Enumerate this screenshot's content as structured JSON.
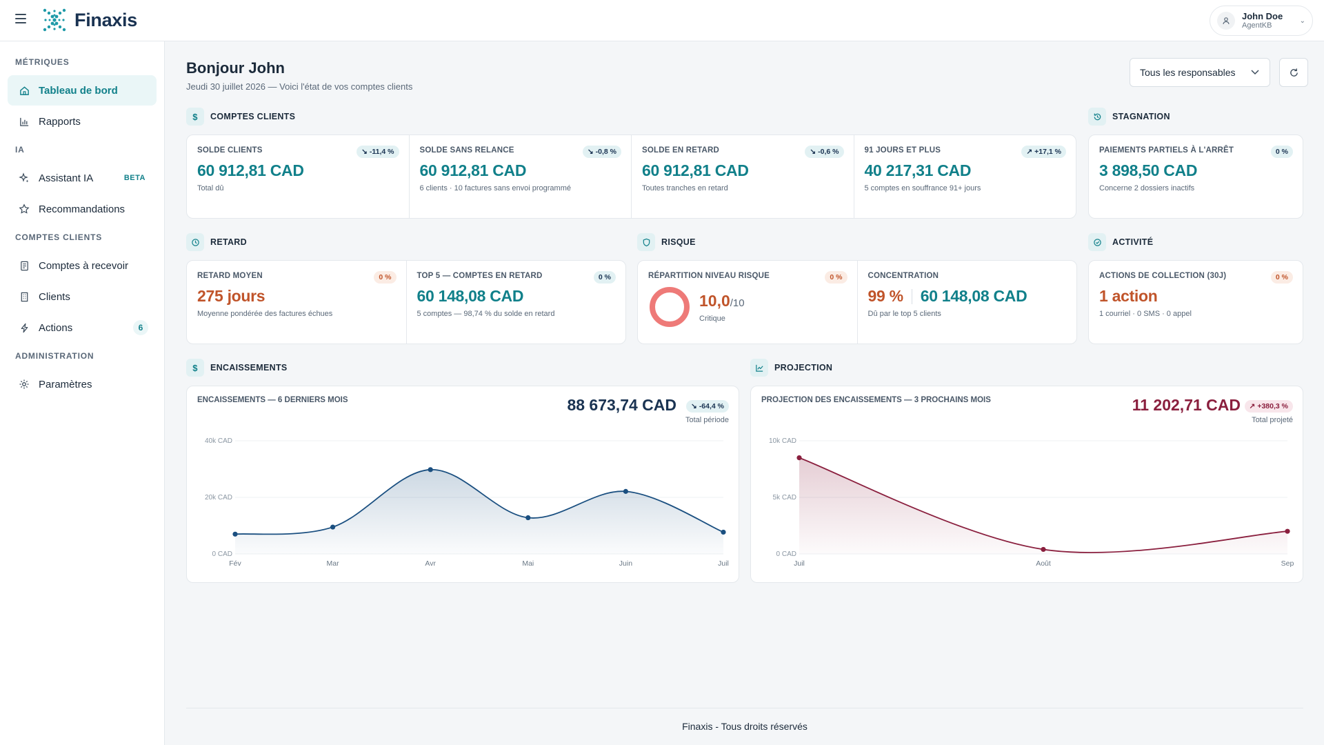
{
  "app": {
    "name": "Finaxis"
  },
  "user": {
    "name": "John Doe",
    "role": "AgentKB"
  },
  "sidebar": {
    "sections": [
      "MÉTRIQUES",
      "IA",
      "COMPTES CLIENTS",
      "ADMINISTRATION"
    ],
    "items": [
      {
        "label": "Tableau de bord",
        "icon": "home-icon",
        "active": true
      },
      {
        "label": "Rapports",
        "icon": "bar-chart-icon"
      },
      {
        "label": "Assistant IA",
        "icon": "sparkle-icon",
        "badge": "BETA"
      },
      {
        "label": "Recommandations",
        "icon": "star-icon"
      },
      {
        "label": "Comptes à recevoir",
        "icon": "document-icon"
      },
      {
        "label": "Clients",
        "icon": "building-icon"
      },
      {
        "label": "Actions",
        "icon": "lightning-icon",
        "count": "6"
      },
      {
        "label": "Paramètres",
        "icon": "gear-icon"
      }
    ]
  },
  "header": {
    "greeting": "Bonjour John",
    "date": "Jeudi 30 juillet 2026 — Voici l'état de vos comptes clients",
    "responsable_select": "Tous les responsables"
  },
  "sections": {
    "comptes": "COMPTES CLIENTS",
    "stagnation": "STAGNATION",
    "retard": "RETARD",
    "risque": "RISQUE",
    "activite": "ACTIVITÉ",
    "encaissements": "ENCAISSEMENTS",
    "projection": "PROJECTION"
  },
  "kpis": {
    "solde_clients": {
      "label": "SOLDE CLIENTS",
      "badge": "-11,4 %",
      "value": "60 912,81 CAD",
      "sub": "Total dû"
    },
    "solde_sans_relance": {
      "label": "SOLDE SANS RELANCE",
      "badge": "-0,8 %",
      "value": "60 912,81 CAD",
      "sub": "6 clients · 10 factures sans envoi programmé"
    },
    "solde_retard": {
      "label": "SOLDE EN RETARD",
      "badge": "-0,6 %",
      "value": "60 912,81 CAD",
      "sub": "Toutes tranches en retard"
    },
    "jours91": {
      "label": "91 JOURS ET PLUS",
      "badge": "+17,1 %",
      "value": "40 217,31 CAD",
      "sub": "5 comptes en souffrance 91+ jours"
    },
    "paiements_partiels": {
      "label": "PAIEMENTS PARTIELS À L'ARRÊT",
      "badge": "0 %",
      "value": "3 898,50 CAD",
      "sub": "Concerne 2 dossiers inactifs"
    },
    "retard_moyen": {
      "label": "RETARD MOYEN",
      "badge": "0 %",
      "value": "275 jours",
      "sub": "Moyenne pondérée des factures échues"
    },
    "top5": {
      "label": "TOP 5 — COMPTES EN RETARD",
      "badge": "0 %",
      "value": "60 148,08 CAD",
      "sub": "5 comptes — 98,74 % du solde en retard"
    },
    "risque": {
      "label": "RÉPARTITION NIVEAU RISQUE",
      "badge": "0 %",
      "score": "10,0",
      "scale": "/10",
      "level": "Critique"
    },
    "concentration": {
      "label": "CONCENTRATION",
      "pct": "99 %",
      "value": "60 148,08 CAD",
      "sub": "Dû par le top 5 clients"
    },
    "actions": {
      "label": "ACTIONS DE COLLECTION (30J)",
      "badge": "0 %",
      "value": "1 action",
      "sub": "1 courriel · 0 SMS · 0 appel"
    }
  },
  "encaissements": {
    "title": "ENCAISSEMENTS — 6 DERNIERS MOIS",
    "total": "88 673,74 CAD",
    "badge": "-64,4 %",
    "total_label": "Total période"
  },
  "projection": {
    "title": "PROJECTION DES ENCAISSEMENTS — 3 PROCHAINS MOIS",
    "total": "11 202,71 CAD",
    "badge": "+380,3 %",
    "total_label": "Total projeté"
  },
  "chart_data": [
    {
      "type": "area",
      "color": "#1a4f80",
      "categories": [
        "Fév",
        "Mar",
        "Avr",
        "Mai",
        "Juin",
        "Juil"
      ],
      "values": [
        7000,
        9500,
        29800,
        12800,
        22100,
        7700
      ],
      "ylim": [
        0,
        40000
      ],
      "yticks": [
        "0 CAD",
        "20k CAD",
        "40k CAD"
      ],
      "yticks_values": [
        0,
        20000,
        40000
      ]
    },
    {
      "type": "area",
      "color": "#8a1f3e",
      "categories": [
        "Juil",
        "Août",
        "Sep"
      ],
      "values": [
        8500,
        400,
        2000
      ],
      "ylim": [
        0,
        10000
      ],
      "yticks": [
        "0 CAD",
        "5k CAD",
        "10k CAD"
      ],
      "yticks_values": [
        0,
        5000,
        10000
      ]
    }
  ],
  "footer": "Finaxis - Tous droits réservés"
}
